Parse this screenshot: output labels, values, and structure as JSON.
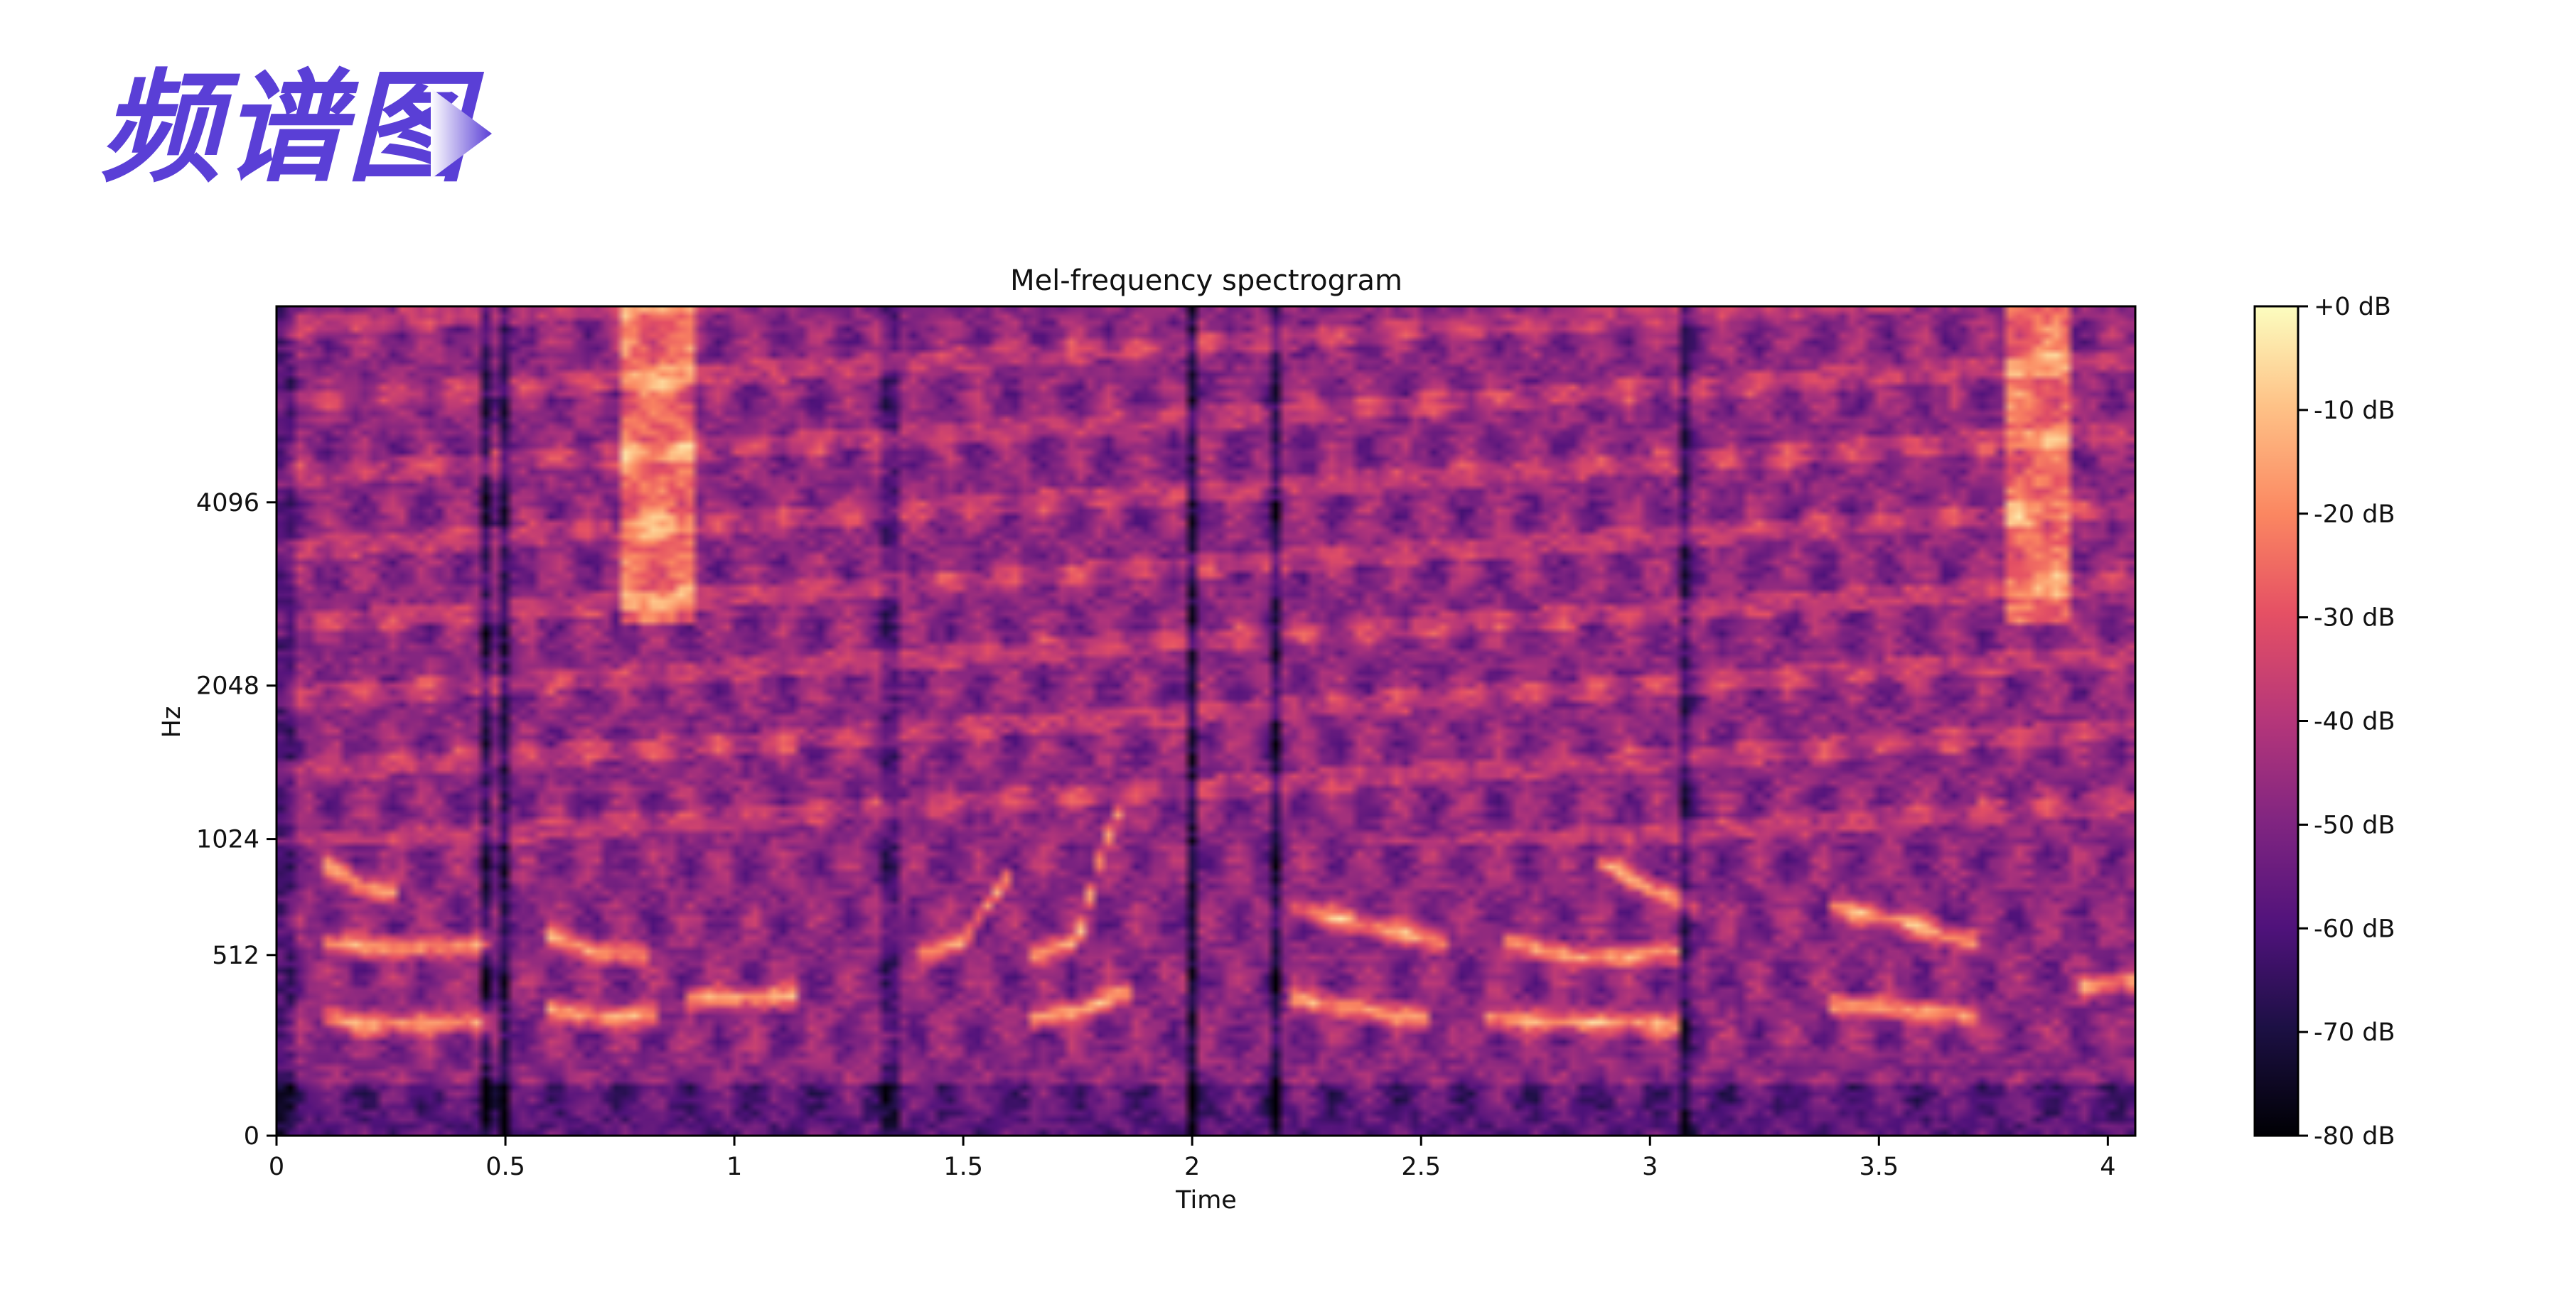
{
  "slide": {
    "title": "频谱图"
  },
  "chart_data": {
    "type": "heatmap",
    "title": "Mel-frequency spectrogram",
    "xlabel": "Time",
    "ylabel": "Hz",
    "xlim": [
      0,
      4.06
    ],
    "x_ticks": [
      {
        "v": 0,
        "label": "0"
      },
      {
        "v": 0.5,
        "label": "0.5"
      },
      {
        "v": 1,
        "label": "1"
      },
      {
        "v": 1.5,
        "label": "1.5"
      },
      {
        "v": 2,
        "label": "2"
      },
      {
        "v": 2.5,
        "label": "2.5"
      },
      {
        "v": 3,
        "label": "3"
      },
      {
        "v": 3.5,
        "label": "3.5"
      },
      {
        "v": 4,
        "label": "4"
      }
    ],
    "y_scale": "mel",
    "ylim": [
      0,
      8000
    ],
    "y_ticks": [
      {
        "v": 0,
        "label": "0"
      },
      {
        "v": 512,
        "label": "512"
      },
      {
        "v": 1024,
        "label": "1024"
      },
      {
        "v": 2048,
        "label": "2048"
      },
      {
        "v": 4096,
        "label": "4096"
      }
    ],
    "colormap": "magma",
    "colorbar": {
      "range_db": [
        -80,
        0
      ],
      "ticks": [
        {
          "v": 0,
          "label": "+0 dB"
        },
        {
          "v": -10,
          "label": "-10 dB"
        },
        {
          "v": -20,
          "label": "-20 dB"
        },
        {
          "v": -30,
          "label": "-30 dB"
        },
        {
          "v": -40,
          "label": "-40 dB"
        },
        {
          "v": -50,
          "label": "-50 dB"
        },
        {
          "v": -60,
          "label": "-60 dB"
        },
        {
          "v": -70,
          "label": "-70 dB"
        },
        {
          "v": -80,
          "label": "-80 dB"
        }
      ]
    },
    "silence_columns": [
      0.02,
      0.46,
      0.5,
      1.34,
      2.0,
      2.18,
      3.08
    ],
    "bright_contours": [
      {
        "t": [
          0.12,
          0.2,
          0.3,
          0.45
        ],
        "hz": [
          300,
          280,
          285,
          290
        ]
      },
      {
        "t": [
          0.12,
          0.2,
          0.3,
          0.45
        ],
        "hz": [
          560,
          540,
          540,
          550
        ]
      },
      {
        "t": [
          0.12,
          0.18,
          0.25
        ],
        "hz": [
          880,
          800,
          760
        ]
      },
      {
        "t": [
          0.6,
          0.7,
          0.82
        ],
        "hz": [
          330,
          300,
          310
        ]
      },
      {
        "t": [
          0.6,
          0.7,
          0.8
        ],
        "hz": [
          580,
          520,
          510
        ]
      },
      {
        "t": [
          0.9,
          1.0,
          1.12
        ],
        "hz": [
          360,
          365,
          370
        ]
      },
      {
        "t": [
          1.42,
          1.5,
          1.6
        ],
        "hz": [
          520,
          560,
          850
        ]
      },
      {
        "t": [
          1.65,
          1.75,
          1.85
        ],
        "hz": [
          300,
          320,
          380
        ]
      },
      {
        "t": [
          1.65,
          1.75,
          1.83
        ],
        "hz": [
          520,
          560,
          1150
        ]
      },
      {
        "t": [
          2.22,
          2.35,
          2.5
        ],
        "hz": [
          360,
          330,
          300
        ]
      },
      {
        "t": [
          2.22,
          2.4,
          2.55
        ],
        "hz": [
          700,
          620,
          560
        ]
      },
      {
        "t": [
          2.65,
          2.85,
          3.05
        ],
        "hz": [
          300,
          290,
          280
        ]
      },
      {
        "t": [
          2.68,
          2.85,
          3.05
        ],
        "hz": [
          560,
          500,
          520
        ]
      },
      {
        "t": [
          2.9,
          3.0,
          3.1
        ],
        "hz": [
          900,
          780,
          700
        ]
      },
      {
        "t": [
          3.4,
          3.55,
          3.7
        ],
        "hz": [
          340,
          330,
          300
        ]
      },
      {
        "t": [
          3.4,
          3.55,
          3.7
        ],
        "hz": [
          700,
          640,
          560
        ]
      },
      {
        "t": [
          3.95,
          4.05
        ],
        "hz": [
          400,
          420
        ]
      }
    ],
    "high_energy_bands": [
      {
        "t0": 0.76,
        "t1": 0.92,
        "hz0": 2600,
        "hz1": 8000
      },
      {
        "t0": 3.78,
        "t1": 3.92,
        "hz0": 2600,
        "hz1": 8000
      }
    ]
  }
}
